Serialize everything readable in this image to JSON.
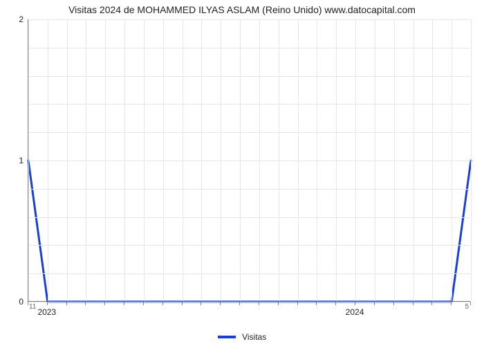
{
  "chart": {
    "type": "line",
    "title": "Visitas 2024 de MOHAMMED ILYAS ASLAM (Reino Unido) www.datocapital.com",
    "title_fontsize": 14,
    "background_color": "#ffffff",
    "grid_color": "#e6e6e6",
    "axis_color": "#808080",
    "line_color": "#1a3fd6",
    "line_width": 3,
    "y_axis": {
      "min": 0,
      "max": 2,
      "major_ticks": [
        0,
        1,
        2
      ],
      "minor_ticks": 4,
      "label_fontsize": 12
    },
    "x_axis": {
      "categories_count": 24,
      "major_label_indices": [
        1,
        17
      ],
      "major_labels": [
        "2023",
        "2024"
      ],
      "label_fontsize": 12,
      "left_axis_label": "11",
      "right_axis_label": "5",
      "small_label_fontsize": 10
    },
    "series": {
      "name": "Visitas",
      "points": [
        {
          "i": 0,
          "y": 1
        },
        {
          "i": 1,
          "y": 0
        },
        {
          "i": 2,
          "y": 0
        },
        {
          "i": 3,
          "y": 0
        },
        {
          "i": 4,
          "y": 0
        },
        {
          "i": 5,
          "y": 0
        },
        {
          "i": 6,
          "y": 0
        },
        {
          "i": 7,
          "y": 0
        },
        {
          "i": 8,
          "y": 0
        },
        {
          "i": 9,
          "y": 0
        },
        {
          "i": 10,
          "y": 0
        },
        {
          "i": 11,
          "y": 0
        },
        {
          "i": 12,
          "y": 0
        },
        {
          "i": 13,
          "y": 0
        },
        {
          "i": 14,
          "y": 0
        },
        {
          "i": 15,
          "y": 0
        },
        {
          "i": 16,
          "y": 0
        },
        {
          "i": 17,
          "y": 0
        },
        {
          "i": 18,
          "y": 0
        },
        {
          "i": 19,
          "y": 0
        },
        {
          "i": 20,
          "y": 0
        },
        {
          "i": 21,
          "y": 0
        },
        {
          "i": 22,
          "y": 0
        },
        {
          "i": 23,
          "y": 1
        }
      ]
    },
    "legend": {
      "label": "Visitas",
      "swatch_color": "#1a3fd6"
    }
  }
}
